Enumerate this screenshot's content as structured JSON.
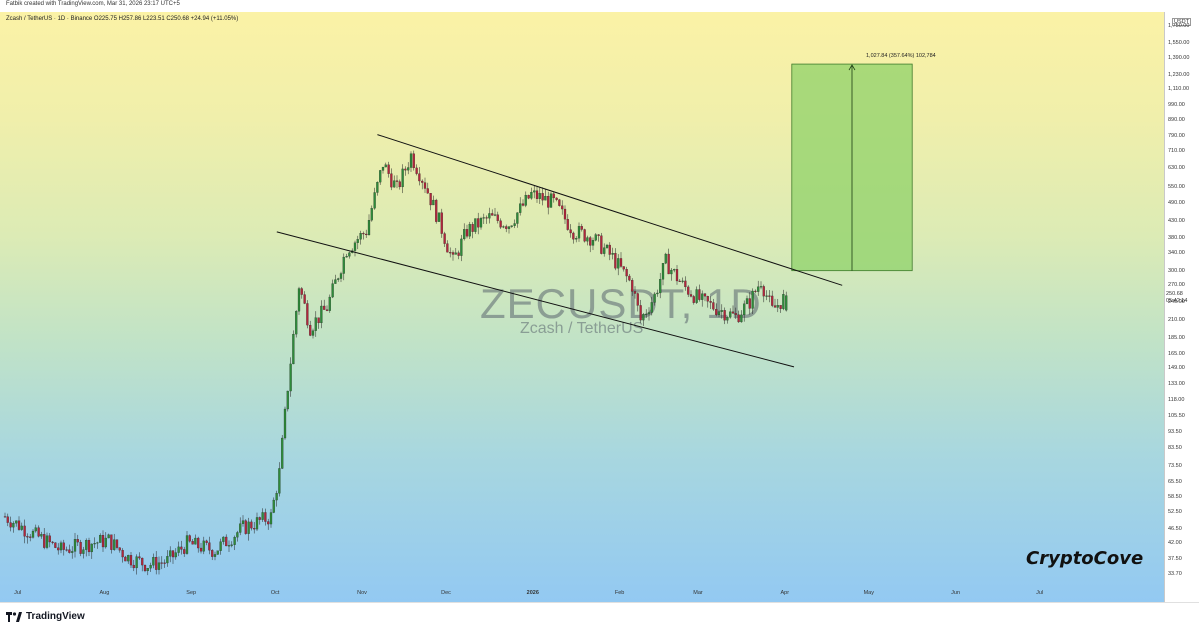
{
  "header": {
    "credit": "Fatbik created with TradingView.com, Mar 31, 2026 23:17 UTC+5",
    "symbol_info": "Zcash / TetherUS · 1D · Binance  O225.75  H257.86  L223.51  C250.68  +24.94 (+11.05%)"
  },
  "watermark": {
    "main": "ZECUSDT, 1D",
    "sub": "Zcash / TetherUS"
  },
  "brand": "CryptoCove",
  "footer": {
    "logo_text": "TradingView"
  },
  "measure": {
    "label": "1,027.84 (357.64%) 102,784"
  },
  "price_axis": {
    "currency": "USDT",
    "ticks": [
      "1,750.00",
      "1,550.00",
      "1,390.00",
      "1,230.00",
      "1,110.00",
      "990.00",
      "890.00",
      "790.00",
      "710.00",
      "630.00",
      "550.00",
      "490.00",
      "430.00",
      "380.00",
      "340.00",
      "300.00",
      "270.00",
      "240.00",
      "210.00",
      "185.00",
      "165.00",
      "149.00",
      "133.00",
      "118.00",
      "105.50",
      "93.50",
      "83.50",
      "73.50",
      "65.50",
      "58.50",
      "52.50",
      "46.50",
      "42.00",
      "37.50",
      "33.70"
    ],
    "current_price": "250.68",
    "countdown": "05:42:14"
  },
  "time_axis": {
    "ticks": [
      {
        "label": "Jul",
        "bold": false
      },
      {
        "label": "Aug",
        "bold": false
      },
      {
        "label": "Sep",
        "bold": false
      },
      {
        "label": "Oct",
        "bold": false
      },
      {
        "label": "Nov",
        "bold": false
      },
      {
        "label": "Dec",
        "bold": false
      },
      {
        "label": "2026",
        "bold": true
      },
      {
        "label": "Feb",
        "bold": false
      },
      {
        "label": "Mar",
        "bold": false
      },
      {
        "label": "Apr",
        "bold": false
      },
      {
        "label": "May",
        "bold": false
      },
      {
        "label": "Jun",
        "bold": false
      },
      {
        "label": "Jul",
        "bold": false
      }
    ]
  },
  "colors": {
    "up": "#2e8b3a",
    "down": "#b0263c",
    "channel": "#111111",
    "target_box": "#8fd16a"
  },
  "chart_data": {
    "type": "candlestick",
    "symbol": "ZECUSDT",
    "timeframe": "1D",
    "exchange": "Binance",
    "y_scale": "log",
    "ylim": [
      33.7,
      1750
    ],
    "last": {
      "open": 225.75,
      "high": 257.86,
      "low": 223.51,
      "close": 250.68,
      "change": 24.94,
      "change_pct": 11.05
    },
    "approx_closes": [
      {
        "date": "2025-06-25",
        "close": 51
      },
      {
        "date": "2025-07-05",
        "close": 45
      },
      {
        "date": "2025-07-15",
        "close": 40
      },
      {
        "date": "2025-07-25",
        "close": 42
      },
      {
        "date": "2025-08-01",
        "close": 43
      },
      {
        "date": "2025-08-08",
        "close": 38
      },
      {
        "date": "2025-08-15",
        "close": 36
      },
      {
        "date": "2025-08-22",
        "close": 37
      },
      {
        "date": "2025-08-29",
        "close": 42
      },
      {
        "date": "2025-09-08",
        "close": 40
      },
      {
        "date": "2025-09-18",
        "close": 47
      },
      {
        "date": "2025-09-28",
        "close": 51
      },
      {
        "date": "2025-10-01",
        "close": 70
      },
      {
        "date": "2025-10-04",
        "close": 130
      },
      {
        "date": "2025-10-08",
        "close": 270
      },
      {
        "date": "2025-10-12",
        "close": 200
      },
      {
        "date": "2025-10-18",
        "close": 230
      },
      {
        "date": "2025-10-25",
        "close": 350
      },
      {
        "date": "2025-11-01",
        "close": 400
      },
      {
        "date": "2025-11-07",
        "close": 650
      },
      {
        "date": "2025-11-12",
        "close": 540
      },
      {
        "date": "2025-11-17",
        "close": 690
      },
      {
        "date": "2025-11-22",
        "close": 560
      },
      {
        "date": "2025-11-27",
        "close": 430
      },
      {
        "date": "2025-12-02",
        "close": 320
      },
      {
        "date": "2025-12-07",
        "close": 400
      },
      {
        "date": "2025-12-15",
        "close": 440
      },
      {
        "date": "2025-12-22",
        "close": 420
      },
      {
        "date": "2025-12-30",
        "close": 520
      },
      {
        "date": "2026-01-07",
        "close": 490
      },
      {
        "date": "2026-01-14",
        "close": 400
      },
      {
        "date": "2026-01-21",
        "close": 380
      },
      {
        "date": "2026-01-28",
        "close": 330
      },
      {
        "date": "2026-02-04",
        "close": 270
      },
      {
        "date": "2026-02-07",
        "close": 210
      },
      {
        "date": "2026-02-12",
        "close": 250
      },
      {
        "date": "2026-02-16",
        "close": 320
      },
      {
        "date": "2026-02-22",
        "close": 270
      },
      {
        "date": "2026-03-01",
        "close": 240
      },
      {
        "date": "2026-03-08",
        "close": 225
      },
      {
        "date": "2026-03-13",
        "close": 215
      },
      {
        "date": "2026-03-18",
        "close": 240
      },
      {
        "date": "2026-03-22",
        "close": 280
      },
      {
        "date": "2026-03-26",
        "close": 225
      },
      {
        "date": "2026-03-31",
        "close": 250.68
      }
    ],
    "channel": {
      "upper": [
        {
          "date": "2025-11-05",
          "price": 800
        },
        {
          "date": "2026-04-20",
          "price": 270
        }
      ],
      "lower": [
        {
          "date": "2025-10-09",
          "price": 380
        },
        {
          "date": "2026-04-01",
          "price": 150
        }
      ]
    },
    "target_projection": {
      "from_price": 300,
      "to_price": 1330,
      "start_date": "2026-04-02",
      "end_date": "2026-05-15",
      "label": "1,027.84 (357.64%) 102,784"
    }
  }
}
